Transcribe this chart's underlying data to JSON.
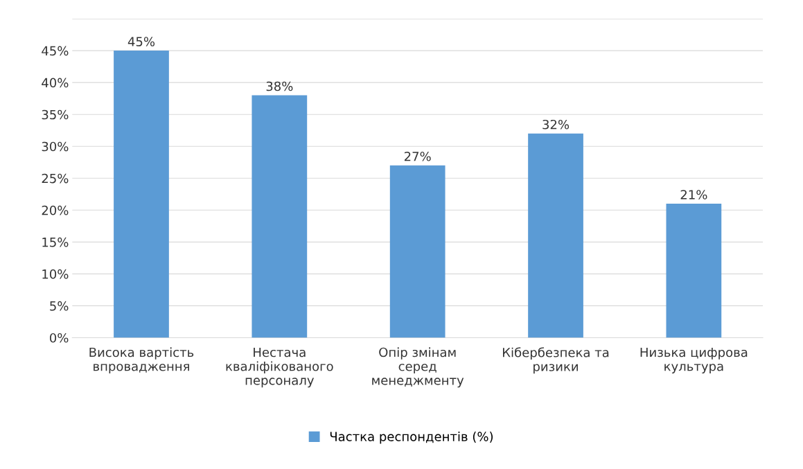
{
  "chart_data": {
    "type": "bar",
    "categories": [
      "Висока вартість\nвпровадження",
      "Нестача\nкваліфікованого\nперсоналу",
      "Опір змінам\nсеред\nменеджменту",
      "Кібербезпека та\nризики",
      "Низька цифрова\nкультура"
    ],
    "series": [
      {
        "name": "Частка респондентів (%)",
        "color": "#5b9bd5",
        "values": [
          45,
          38,
          27,
          32,
          21
        ],
        "value_labels": [
          "45%",
          "38%",
          "27%",
          "32%",
          "21%"
        ]
      }
    ],
    "ylim": [
      0,
      50
    ],
    "yticks": [
      {
        "value": 0,
        "label": "0%"
      },
      {
        "value": 5,
        "label": "5%"
      },
      {
        "value": 10,
        "label": "10%"
      },
      {
        "value": 15,
        "label": "15%"
      },
      {
        "value": 20,
        "label": "20%"
      },
      {
        "value": 25,
        "label": "25%"
      },
      {
        "value": 30,
        "label": "30%"
      },
      {
        "value": 35,
        "label": "35%"
      },
      {
        "value": 40,
        "label": "40%"
      },
      {
        "value": 45,
        "label": "45%"
      },
      {
        "value": 50,
        "label": null
      }
    ],
    "grid": "y",
    "legend": "bottom"
  }
}
